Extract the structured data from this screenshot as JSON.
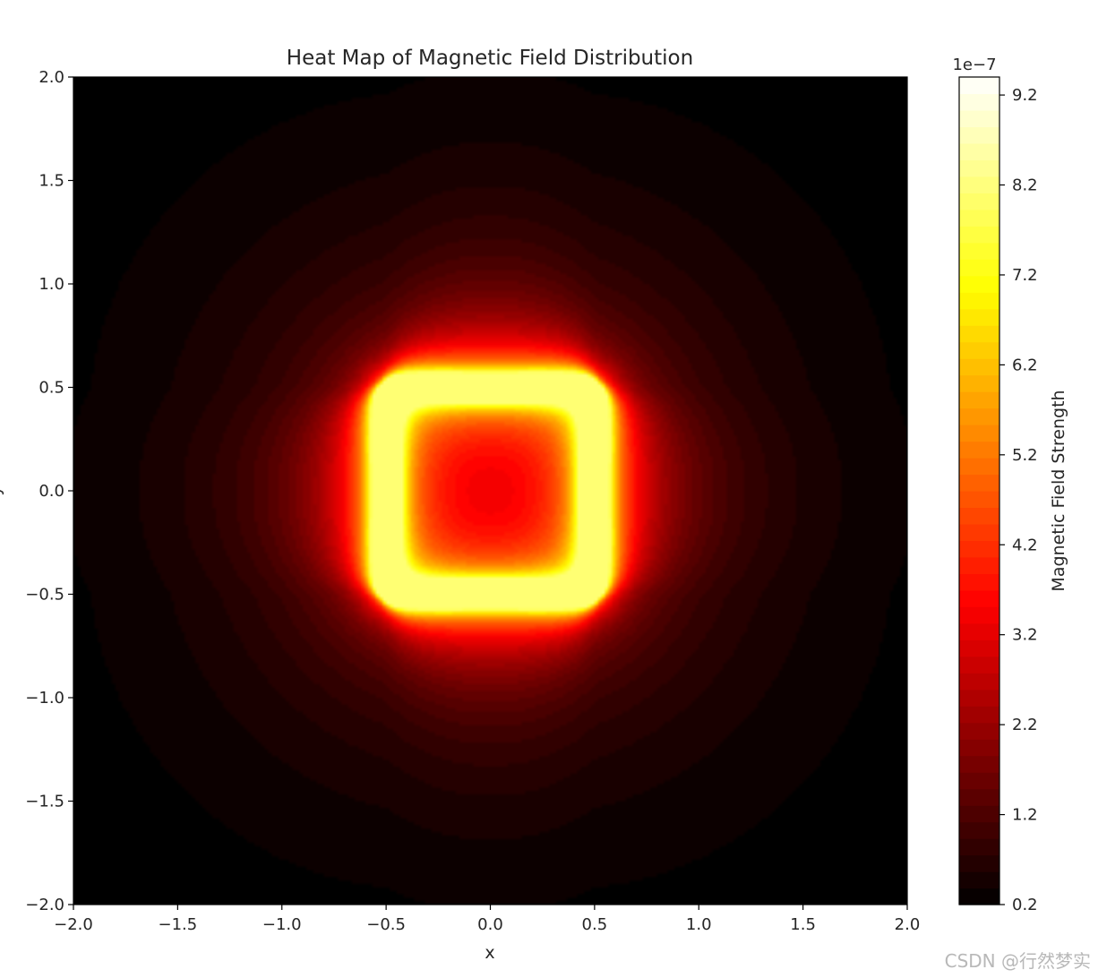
{
  "chart_data": {
    "type": "heatmap",
    "title": "Heat Map of Magnetic Field Distribution",
    "xlabel": "x",
    "ylabel": "y",
    "xlim": [
      -2.0,
      2.0
    ],
    "ylim": [
      -2.0,
      2.0
    ],
    "x_ticks": [
      "−2.0",
      "−1.5",
      "−1.0",
      "−0.5",
      "0.0",
      "0.5",
      "1.0",
      "1.5",
      "2.0"
    ],
    "y_ticks": [
      "−2.0",
      "−1.5",
      "−1.0",
      "−0.5",
      "0.0",
      "0.5",
      "1.0",
      "1.5",
      "2.0"
    ],
    "colormap": "hot",
    "source": {
      "shape": "square current loop",
      "corners": [
        [
          -0.5,
          -0.5
        ],
        [
          0.5,
          -0.5
        ],
        [
          0.5,
          0.5
        ],
        [
          -0.5,
          0.5
        ]
      ]
    },
    "colorbar": {
      "label": "Magnetic Field Strength",
      "exponent": "1e−7",
      "range": [
        0.2,
        9.4
      ],
      "ticks": [
        "0.2",
        "1.2",
        "2.2",
        "3.2",
        "4.2",
        "5.2",
        "6.2",
        "7.2",
        "8.2",
        "9.2"
      ],
      "levels": 50
    },
    "grid": false
  },
  "watermark": "CSDN @行然梦实"
}
